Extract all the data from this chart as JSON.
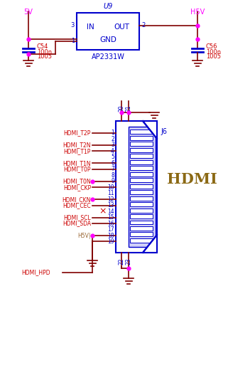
{
  "bg_color": "#ffffff",
  "wire_color": "#800000",
  "box_color": "#0000cc",
  "label_color": "#0000cc",
  "signal_color": "#cc0000",
  "junction_color": "#ff00ff",
  "gnd_color": "#800000",
  "power_color": "#ff00ff",
  "h5v_color": "#996633",
  "cap_color": "#0000cc",
  "signals_left": [
    [
      1,
      "HDMI_T2P",
      false,
      false
    ],
    [
      2,
      "",
      false,
      false
    ],
    [
      3,
      "HDMI_T2N",
      false,
      false
    ],
    [
      4,
      "HDMI_T1P",
      false,
      false
    ],
    [
      5,
      "",
      true,
      false
    ],
    [
      6,
      "HDMI_T1N",
      false,
      false
    ],
    [
      7,
      "HDMI_T0P",
      false,
      false
    ],
    [
      8,
      "",
      false,
      false
    ],
    [
      9,
      "HDMI_T0N",
      true,
      false
    ],
    [
      10,
      "HDMI_CKP",
      false,
      false
    ],
    [
      11,
      "",
      false,
      false
    ],
    [
      12,
      "HDMI_CKN",
      true,
      false
    ],
    [
      13,
      "HDMI_CEC",
      false,
      false
    ],
    [
      14,
      "",
      false,
      true
    ],
    [
      15,
      "HDMI_SCL",
      false,
      false
    ],
    [
      16,
      "HDMI_SDA",
      false,
      false
    ],
    [
      17,
      "",
      false,
      false
    ],
    [
      18,
      "H5V|",
      true,
      false
    ],
    [
      19,
      "",
      false,
      false
    ]
  ]
}
